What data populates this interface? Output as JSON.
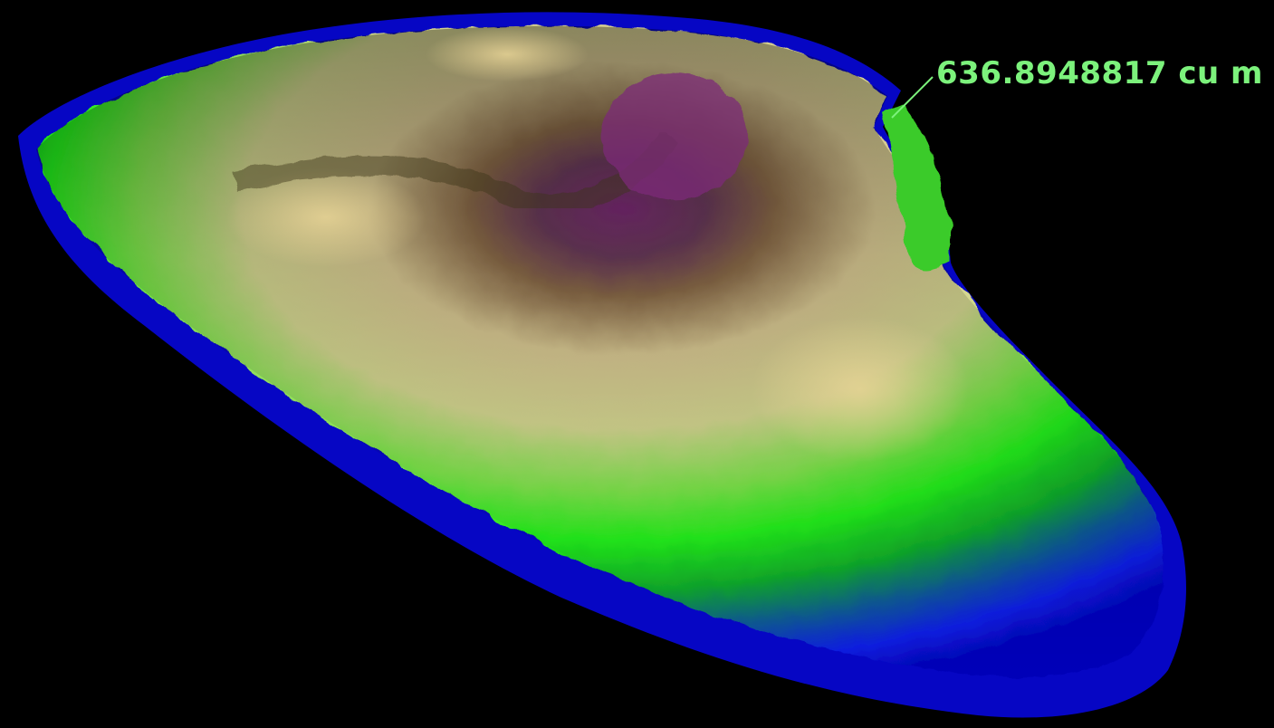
{
  "viewer": {
    "volume_readout": "636.8948817 cu m",
    "label_color": "#7cf27c",
    "background_color": "#000000",
    "colormap": [
      "#0008c8",
      "#0a3fd8",
      "#0f6f7a",
      "#12b81e",
      "#24ee1c",
      "#a8e06a",
      "#e6dc9a",
      "#c2a676",
      "#6e5634",
      "#6c2a68",
      "#7a287a"
    ]
  }
}
